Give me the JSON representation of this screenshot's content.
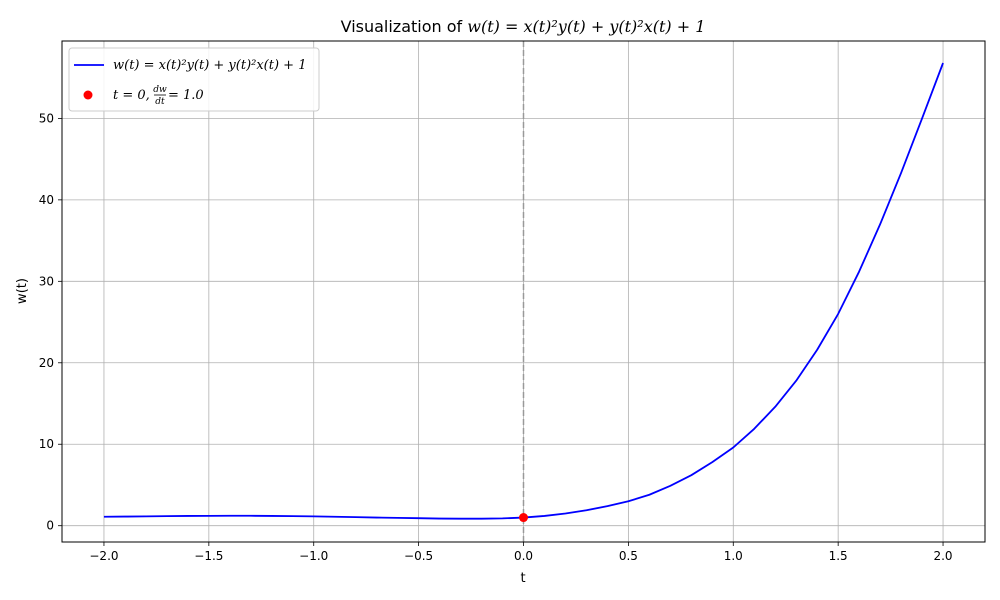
{
  "chart_data": {
    "type": "line",
    "title_prefix": "Visualization of ",
    "title_formula": "w(t) = x(t)²y(t) + y(t)²x(t) + 1",
    "xlabel": "t",
    "ylabel": "w(t)",
    "xlim": [
      -2.2,
      2.2
    ],
    "ylim": [
      -2.0,
      59.5
    ],
    "x_ticks": [
      -2.0,
      -1.5,
      -1.0,
      -0.5,
      0.0,
      0.5,
      1.0,
      1.5,
      2.0
    ],
    "x_tick_labels": [
      "−2.0",
      "−1.5",
      "−1.0",
      "−0.5",
      "0.0",
      "0.5",
      "1.0",
      "1.5",
      "2.0"
    ],
    "y_ticks": [
      0,
      10,
      20,
      30,
      40,
      50
    ],
    "y_tick_labels": [
      "0",
      "10",
      "20",
      "30",
      "40",
      "50"
    ],
    "grid": true,
    "legend_position": "top-left",
    "series": [
      {
        "name": "w(t) = x(t)²y(t) + y(t)²x(t) + 1",
        "color": "#0000ff",
        "x": [
          -2.0,
          -1.9,
          -1.8,
          -1.7,
          -1.6,
          -1.5,
          -1.4,
          -1.3,
          -1.2,
          -1.1,
          -1.0,
          -0.9,
          -0.8,
          -0.7,
          -0.6,
          -0.5,
          -0.4,
          -0.3,
          -0.2,
          -0.1,
          0.0,
          0.1,
          0.2,
          0.3,
          0.4,
          0.5,
          0.6,
          0.7,
          0.8,
          0.9,
          1.0,
          1.1,
          1.2,
          1.3,
          1.4,
          1.5,
          1.6,
          1.7,
          1.8,
          1.9,
          2.0
        ],
        "y": [
          1.1,
          1.12,
          1.15,
          1.18,
          1.2,
          1.21,
          1.22,
          1.22,
          1.2,
          1.18,
          1.15,
          1.1,
          1.05,
          1.0,
          0.96,
          0.92,
          0.88,
          0.86,
          0.86,
          0.9,
          1.0,
          1.2,
          1.5,
          1.9,
          2.4,
          3.0,
          3.8,
          4.9,
          6.2,
          7.8,
          9.6,
          11.9,
          14.6,
          17.8,
          21.6,
          26.0,
          31.2,
          37.0,
          43.3,
          50.0,
          56.8
        ]
      }
    ],
    "marker": {
      "x": 0.0,
      "y": 1.0,
      "color": "#ff0000",
      "label_t": "t = 0, ",
      "label_frac_num": "dw",
      "label_frac_den": "dt",
      "label_value": " = 1.0"
    },
    "vline": {
      "x": 0.0,
      "color": "#999999",
      "style": "dashed"
    },
    "grid_color": "#b0b0b0"
  }
}
